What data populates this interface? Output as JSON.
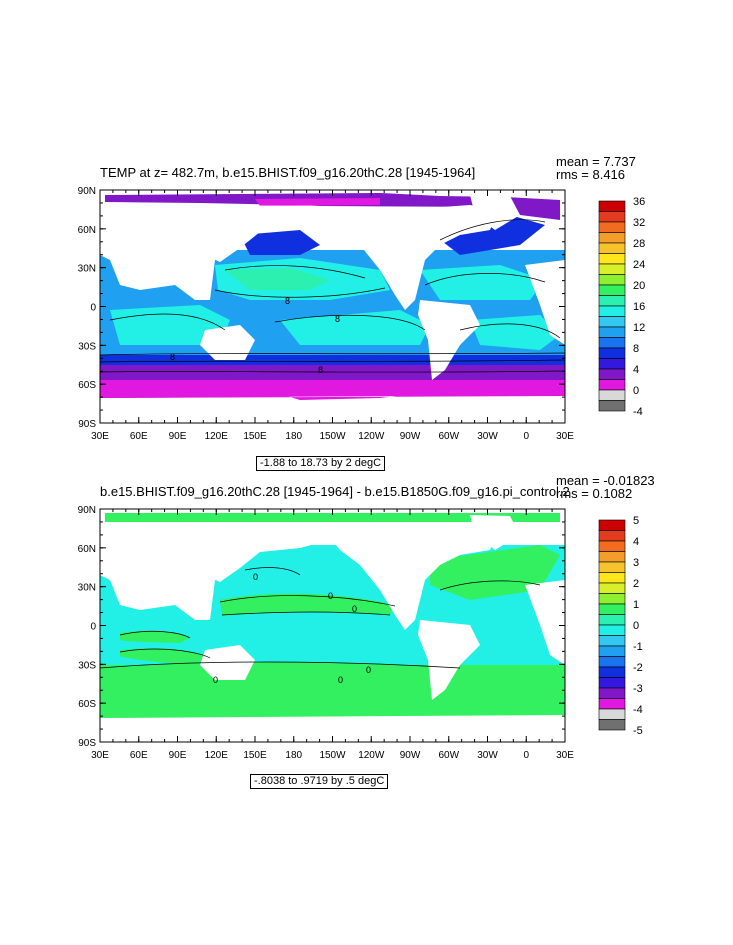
{
  "panels": [
    {
      "id": "top",
      "title": "TEMP at z= 482.7m, b.e15.BHIST.f09_g16.20thC.28 [1945-1964]",
      "mean_label": "mean = 7.737",
      "rms_label": "rms = 8.416",
      "range_label": "-1.88 to 18.73 by 2 degC",
      "contour_labels": [
        "8",
        "8",
        "8",
        "8"
      ],
      "colorbar": {
        "labels": [
          "36",
          "32",
          "28",
          "24",
          "20",
          "16",
          "12",
          "8",
          "4",
          "0",
          "-4"
        ],
        "colors": [
          "#cc0000",
          "#e23b1f",
          "#f26b1f",
          "#f59d2a",
          "#f7c32c",
          "#ffe61a",
          "#d8f02a",
          "#8ef030",
          "#33f060",
          "#2cf0b0",
          "#22f0e6",
          "#33c8f0",
          "#1fa0f0",
          "#1a74f0",
          "#1030e0",
          "#3318e0",
          "#8018c8",
          "#e018e0",
          "#d8d8d8",
          "#707070"
        ]
      }
    },
    {
      "id": "bottom",
      "title": "b.e15.BHIST.f09_g16.20thC.28 [1945-1964] - b.e15.B1850G.f09_g16.pi_control.2",
      "mean_label": "mean = -0.01823",
      "rms_label": "rms = 0.1082",
      "range_label": "-.8038 to .9719 by .5 degC",
      "contour_labels": [
        "0",
        "0",
        "0",
        "0",
        "0",
        "0"
      ],
      "colorbar": {
        "labels": [
          "5",
          "4",
          "3",
          "2",
          "1",
          "0",
          "-1",
          "-2",
          "-3",
          "-4",
          "-5"
        ],
        "colors": [
          "#cc0000",
          "#e23b1f",
          "#f26b1f",
          "#f59d2a",
          "#f7c32c",
          "#ffe61a",
          "#d8f02a",
          "#8ef030",
          "#33f060",
          "#2cf0b0",
          "#22f0e6",
          "#33c8f0",
          "#1fa0f0",
          "#1a74f0",
          "#1030e0",
          "#3318e0",
          "#8018c8",
          "#e018e0",
          "#d8d8d8",
          "#707070"
        ]
      }
    }
  ],
  "axes": {
    "lat_labels": [
      "90N",
      "60N",
      "30N",
      "0",
      "30S",
      "60S",
      "90S"
    ],
    "lon_labels": [
      "30E",
      "60E",
      "90E",
      "120E",
      "150E",
      "180",
      "150W",
      "120W",
      "90W",
      "60W",
      "30W",
      "0",
      "30E"
    ]
  }
}
